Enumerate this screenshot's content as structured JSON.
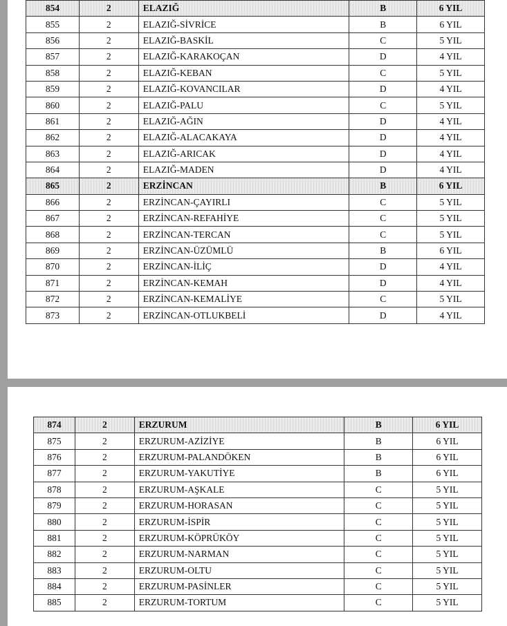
{
  "page1": {
    "rows": [
      [
        "854",
        "2",
        "ELAZIĞ",
        "B",
        "6 YIL",
        true
      ],
      [
        "855",
        "2",
        "ELAZIĞ-SİVRİCE",
        "B",
        "6 YIL",
        false
      ],
      [
        "856",
        "2",
        "ELAZIĞ-BASKİL",
        "C",
        "5 YIL",
        false
      ],
      [
        "857",
        "2",
        "ELAZIĞ-KARAKOÇAN",
        "D",
        "4 YIL",
        false
      ],
      [
        "858",
        "2",
        "ELAZIĞ-KEBAN",
        "C",
        "5 YIL",
        false
      ],
      [
        "859",
        "2",
        "ELAZIĞ-KOVANCILAR",
        "D",
        "4 YIL",
        false
      ],
      [
        "860",
        "2",
        "ELAZIĞ-PALU",
        "C",
        "5 YIL",
        false
      ],
      [
        "861",
        "2",
        "ELAZIĞ-AĞIN",
        "D",
        "4 YIL",
        false
      ],
      [
        "862",
        "2",
        "ELAZIĞ-ALACAKAYA",
        "D",
        "4 YIL",
        false
      ],
      [
        "863",
        "2",
        "ELAZIĞ-ARICAK",
        "D",
        "4 YIL",
        false
      ],
      [
        "864",
        "2",
        "ELAZIĞ-MADEN",
        "D",
        "4 YIL",
        false
      ],
      [
        "865",
        "2",
        "ERZİNCAN",
        "B",
        "6 YIL",
        true
      ],
      [
        "866",
        "2",
        "ERZİNCAN-ÇAYIRLI",
        "C",
        "5 YIL",
        false
      ],
      [
        "867",
        "2",
        "ERZİNCAN-REFAHİYE",
        "C",
        "5 YIL",
        false
      ],
      [
        "868",
        "2",
        "ERZİNCAN-TERCAN",
        "C",
        "5 YIL",
        false
      ],
      [
        "869",
        "2",
        "ERZİNCAN-ÜZÜMLÜ",
        "B",
        "6 YIL",
        false
      ],
      [
        "870",
        "2",
        "ERZİNCAN-İLİÇ",
        "D",
        "4 YIL",
        false
      ],
      [
        "871",
        "2",
        "ERZİNCAN-KEMAH",
        "D",
        "4 YIL",
        false
      ],
      [
        "872",
        "2",
        "ERZİNCAN-KEMALİYE",
        "C",
        "5 YIL",
        false
      ],
      [
        "873",
        "2",
        "ERZİNCAN-OTLUKBELİ",
        "D",
        "4 YIL",
        false
      ]
    ]
  },
  "page2": {
    "rows": [
      [
        "874",
        "2",
        "ERZURUM",
        "B",
        "6 YIL",
        true
      ],
      [
        "875",
        "2",
        "ERZURUM-AZİZİYE",
        "B",
        "6 YIL",
        false
      ],
      [
        "876",
        "2",
        "ERZURUM-PALANDÖKEN",
        "B",
        "6 YIL",
        false
      ],
      [
        "877",
        "2",
        "ERZURUM-YAKUTİYE",
        "B",
        "6 YIL",
        false
      ],
      [
        "878",
        "2",
        "ERZURUM-AŞKALE",
        "C",
        "5 YIL",
        false
      ],
      [
        "879",
        "2",
        "ERZURUM-HORASAN",
        "C",
        "5 YIL",
        false
      ],
      [
        "880",
        "2",
        "ERZURUM-İSPİR",
        "C",
        "5 YIL",
        false
      ],
      [
        "881",
        "2",
        "ERZURUM-KÖPRÜKÖY",
        "C",
        "5 YIL",
        false
      ],
      [
        "882",
        "2",
        "ERZURUM-NARMAN",
        "C",
        "5 YIL",
        false
      ],
      [
        "883",
        "2",
        "ERZURUM-OLTU",
        "C",
        "5 YIL",
        false
      ],
      [
        "884",
        "2",
        "ERZURUM-PASİNLER",
        "C",
        "5 YIL",
        false
      ],
      [
        "885",
        "2",
        "ERZURUM-TORTUM",
        "C",
        "5 YIL",
        false
      ]
    ]
  }
}
